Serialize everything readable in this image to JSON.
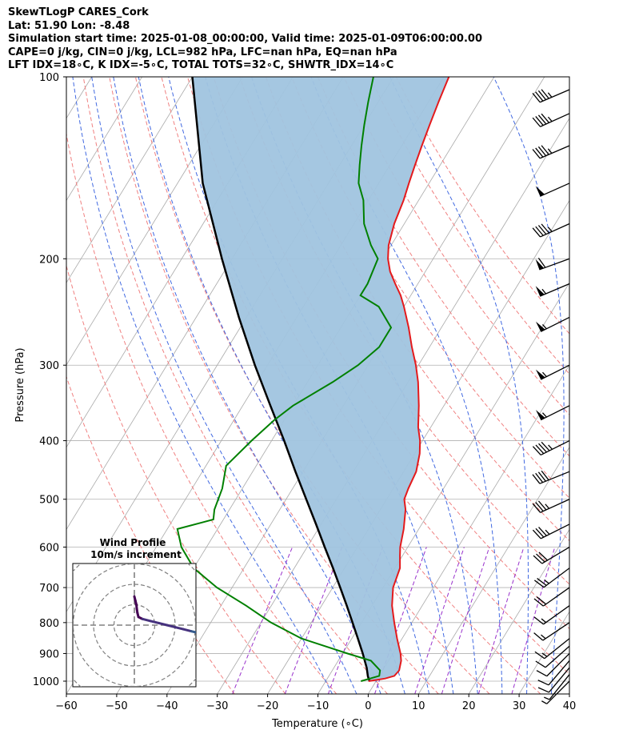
{
  "header": {
    "line1": "SkewTLogP CARES_Cork",
    "line2": "Lat: 51.90   Lon: -8.48",
    "line3": "Simulation start time: 2025-01-08_00:00:00, Valid time: 2025-01-09T06:00:00.00",
    "line4": "CAPE=0 j/kg, CIN=0 j/kg, LCL=982 hPa, LFC=nan hPa, EQ=nan hPa",
    "line5": "LFT IDX=18∘C, K IDX=-5∘C, TOTAL TOTS=32∘C, SHWTR_IDX=14∘C"
  },
  "chart_data": {
    "type": "line",
    "subtype": "skew-T log-P diagram",
    "xlabel": "Temperature (∘C)",
    "ylabel": "Pressure (hPa)",
    "xlim": [
      -60,
      40
    ],
    "ylim": [
      1050,
      100
    ],
    "x_ticks": [
      -60,
      -50,
      -40,
      -30,
      -20,
      -10,
      0,
      10,
      20,
      30,
      40
    ],
    "y_ticks": [
      100,
      200,
      300,
      400,
      500,
      600,
      700,
      800,
      900,
      1000
    ],
    "series": [
      {
        "name": "Temperature",
        "color": "#e41a1c",
        "pressure": [
          1000,
          990,
          980,
          960,
          925,
          900,
          850,
          800,
          750,
          700,
          650,
          620,
          600,
          560,
          520,
          500,
          480,
          450,
          420,
          400,
          380,
          350,
          320,
          300,
          280,
          260,
          240,
          230,
          220,
          210,
          200,
          190,
          175,
          160,
          150,
          140,
          130,
          120,
          110,
          100
        ],
        "temperature": [
          -1.5,
          1.5,
          3.0,
          3.3,
          2.5,
          1.5,
          -1.0,
          -3.5,
          -6.0,
          -8.0,
          -9.0,
          -10.5,
          -11.5,
          -13.0,
          -15.0,
          -16.5,
          -17.0,
          -17.5,
          -19.0,
          -20.5,
          -22.5,
          -25.0,
          -28.0,
          -30.5,
          -33.5,
          -36.5,
          -40.0,
          -42.0,
          -44.5,
          -47.0,
          -49.0,
          -50.5,
          -52.0,
          -53.0,
          -54.0,
          -55.0,
          -56.0,
          -57.0,
          -58.0,
          -59.0
        ]
      },
      {
        "name": "Dewpoint",
        "color": "#008000",
        "pressure": [
          1000,
          990,
          980,
          960,
          925,
          900,
          850,
          800,
          750,
          700,
          650,
          600,
          560,
          540,
          520,
          480,
          440,
          400,
          370,
          350,
          320,
          300,
          280,
          260,
          240,
          230,
          220,
          200,
          190,
          175,
          160,
          150,
          140,
          130,
          120,
          110,
          100
        ],
        "temperature": [
          -3.0,
          -1.5,
          0.0,
          -0.5,
          -3.5,
          -9.0,
          -20.0,
          -28.0,
          -35.0,
          -43.0,
          -50.0,
          -55.0,
          -58.0,
          -52.0,
          -53.0,
          -54.0,
          -56.0,
          -54.0,
          -52.0,
          -50.0,
          -45.0,
          -42.0,
          -40.0,
          -40.0,
          -45.0,
          -50.0,
          -50.0,
          -51.0,
          -54.0,
          -58.0,
          -61.0,
          -64.0,
          -66.0,
          -68.0,
          -70.0,
          -72.0,
          -74.0
        ]
      }
    ],
    "parcel_profile": {
      "name": "Parcel",
      "color": "#000000",
      "pressure": [
        1000,
        990,
        982,
        950,
        900,
        850,
        800,
        750,
        700,
        650,
        600,
        550,
        500,
        450,
        400,
        350,
        300,
        250,
        200,
        150,
        100
      ],
      "temperature": [
        -1.3,
        -1.8,
        -2.2,
        -3.5,
        -6.0,
        -8.8,
        -11.8,
        -15.0,
        -18.5,
        -22.3,
        -26.5,
        -31.0,
        -36.0,
        -41.5,
        -47.5,
        -54.5,
        -62.5,
        -71.5,
        -82.0,
        -95.0,
        -110.0
      ]
    },
    "cape_cin_shading": {
      "label": "CIN",
      "color": "#a0c4df"
    },
    "reference_lines": {
      "isotherms": [
        -160,
        -150,
        -140,
        -130,
        -120,
        -110,
        -100,
        -90,
        -80,
        -70,
        -60,
        -50,
        -40,
        -30,
        -20,
        -10,
        0,
        10,
        20,
        30,
        40
      ],
      "dry_adiabats_thetaC": [
        -30,
        -20,
        -10,
        0,
        10,
        20,
        30,
        40,
        50,
        60,
        70,
        80,
        90,
        100,
        110,
        120
      ],
      "moist_adiabats_startC": [
        -10,
        -5,
        0,
        5,
        10,
        15,
        20,
        25,
        30,
        35
      ],
      "mixing_ratio_lines_gkg": [
        0.4,
        1,
        2,
        4,
        7,
        10,
        16,
        24
      ],
      "isotherm_color": "#a9a9a9",
      "dry_adiabat_color": "#f08080",
      "moist_adiabat_color": "#4169e1",
      "mixing_ratio_color": "#9932cc"
    },
    "wind_barbs": {
      "pressure": [
        1000,
        975,
        950,
        925,
        900,
        875,
        850,
        800,
        750,
        700,
        650,
        600,
        550,
        500,
        450,
        400,
        350,
        300,
        250,
        220,
        200,
        175,
        150,
        130,
        115,
        105
      ],
      "u_kt": [
        2,
        4,
        5,
        6,
        8,
        9,
        10,
        12,
        14,
        17,
        20,
        25,
        30,
        33,
        37,
        40,
        50,
        50,
        50,
        52,
        55,
        40,
        45,
        42,
        40,
        42
      ],
      "v_kt": [
        2,
        5,
        6,
        7,
        8,
        8,
        8,
        8,
        10,
        12,
        15,
        15,
        15,
        15,
        15,
        20,
        25,
        25,
        25,
        22,
        20,
        18,
        20,
        18,
        18,
        18
      ]
    },
    "hodograph": {
      "title": "Wind Profile",
      "subtitle": "10m/s increment",
      "rings": [
        10,
        20,
        30,
        40
      ],
      "u": [
        0,
        0.5,
        1,
        1.2,
        1.5,
        2,
        4,
        8,
        12,
        16,
        20,
        24,
        28,
        32,
        36,
        40,
        44,
        48
      ],
      "v": [
        14,
        12,
        10,
        8,
        6,
        4,
        3,
        2,
        1,
        0,
        -1,
        -2,
        -3,
        -4,
        -6,
        -7,
        -8,
        -9
      ]
    }
  }
}
